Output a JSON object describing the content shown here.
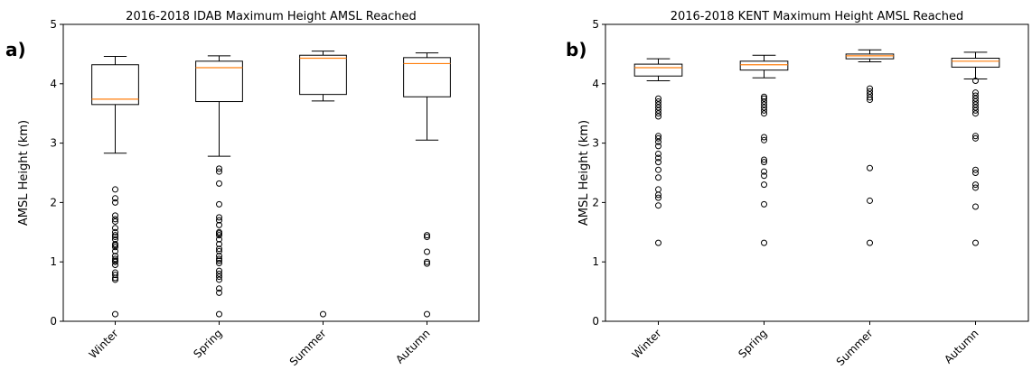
{
  "colors": {
    "median": "#ff7f0e",
    "box": "#000000",
    "flier": "#000000"
  },
  "chart_data": [
    {
      "type": "box",
      "panel_label": "a)",
      "title": "2016-2018 IDAB Maximum Height AMSL Reached",
      "ylabel": "AMSL Height (km)",
      "ylim": [
        0,
        5
      ],
      "yticks": [
        0,
        1,
        2,
        3,
        4,
        5
      ],
      "categories": [
        "Winter",
        "Spring",
        "Summer",
        "Autumn"
      ],
      "boxes": [
        {
          "whislo": 2.83,
          "q1": 3.65,
          "med": 3.74,
          "q3": 4.32,
          "whishi": 4.46,
          "fliers": [
            0.12,
            0.7,
            0.73,
            0.78,
            0.82,
            0.95,
            1.0,
            1.02,
            1.05,
            1.1,
            1.18,
            1.25,
            1.28,
            1.3,
            1.38,
            1.42,
            1.45,
            1.5,
            1.57,
            1.68,
            1.72,
            1.78,
            2.0,
            2.07,
            2.22
          ]
        },
        {
          "whislo": 2.78,
          "q1": 3.7,
          "med": 4.27,
          "q3": 4.38,
          "whishi": 4.47,
          "fliers": [
            0.12,
            0.48,
            0.55,
            0.7,
            0.75,
            0.8,
            0.85,
            0.98,
            1.02,
            1.05,
            1.1,
            1.18,
            1.22,
            1.3,
            1.38,
            1.45,
            1.48,
            1.5,
            1.62,
            1.7,
            1.75,
            1.97,
            2.32,
            2.52,
            2.57
          ]
        },
        {
          "whislo": 3.71,
          "q1": 3.82,
          "med": 4.43,
          "q3": 4.48,
          "whishi": 4.55,
          "fliers": [
            0.12
          ]
        },
        {
          "whislo": 3.05,
          "q1": 3.78,
          "med": 4.34,
          "q3": 4.44,
          "whishi": 4.52,
          "fliers": [
            0.12,
            0.97,
            1.0,
            1.17,
            1.42,
            1.45
          ]
        }
      ]
    },
    {
      "type": "box",
      "panel_label": "b)",
      "title": "2016-2018 KENT Maximum Height AMSL Reached",
      "ylabel": "AMSL Height (km)",
      "ylim": [
        0,
        5
      ],
      "yticks": [
        0,
        1,
        2,
        3,
        4,
        5
      ],
      "categories": [
        "Winter",
        "Spring",
        "Summer",
        "Autumn"
      ],
      "boxes": [
        {
          "whislo": 4.05,
          "q1": 4.13,
          "med": 4.27,
          "q3": 4.33,
          "whishi": 4.42,
          "fliers": [
            1.32,
            1.95,
            2.08,
            2.13,
            2.22,
            2.42,
            2.55,
            2.68,
            2.75,
            2.82,
            2.95,
            3.02,
            3.08,
            3.12,
            3.45,
            3.5,
            3.55,
            3.6,
            3.65,
            3.7,
            3.75
          ]
        },
        {
          "whislo": 4.1,
          "q1": 4.23,
          "med": 4.32,
          "q3": 4.38,
          "whishi": 4.48,
          "fliers": [
            1.32,
            1.97,
            2.3,
            2.45,
            2.52,
            2.68,
            2.72,
            3.05,
            3.1,
            3.5,
            3.55,
            3.6,
            3.65,
            3.7,
            3.75,
            3.78
          ]
        },
        {
          "whislo": 4.37,
          "q1": 4.42,
          "med": 4.47,
          "q3": 4.5,
          "whishi": 4.57,
          "fliers": [
            1.32,
            2.03,
            2.58,
            3.73,
            3.77,
            3.82,
            3.87,
            3.92
          ]
        },
        {
          "whislo": 4.08,
          "q1": 4.28,
          "med": 4.38,
          "q3": 4.43,
          "whishi": 4.53,
          "fliers": [
            1.32,
            1.93,
            2.25,
            2.3,
            2.5,
            2.55,
            3.08,
            3.12,
            3.5,
            3.55,
            3.6,
            3.65,
            3.7,
            3.75,
            3.8,
            3.85,
            4.05
          ]
        }
      ]
    }
  ]
}
